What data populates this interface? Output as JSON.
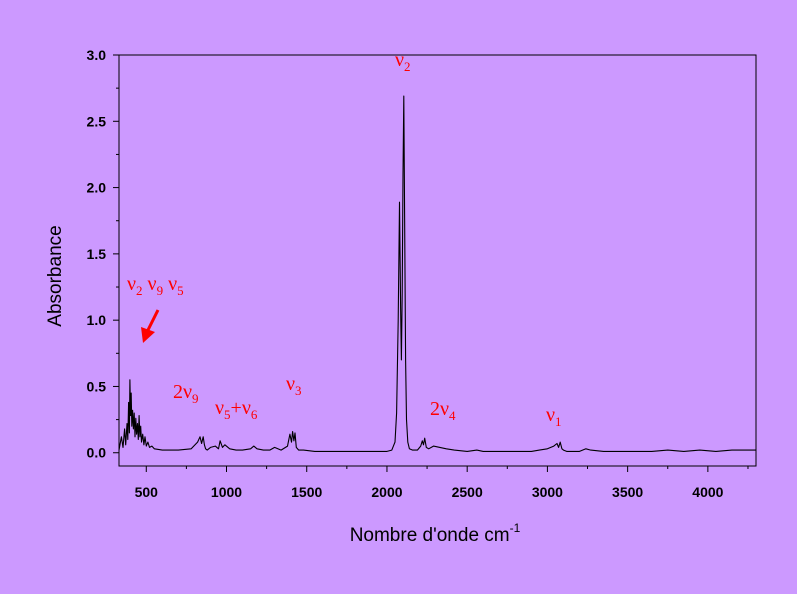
{
  "chart_data": {
    "type": "line",
    "xlabel": "Nombre d'onde cm",
    "xlabel_sup": "-1",
    "ylabel": "Absorbance",
    "xlim": [
      330,
      4300
    ],
    "ylim": [
      -0.1,
      3.0
    ],
    "x_ticks": [
      500,
      1000,
      1500,
      2000,
      2500,
      3000,
      3500,
      4000
    ],
    "y_ticks": [
      0.0,
      0.5,
      1.0,
      1.5,
      2.0,
      2.5,
      3.0
    ],
    "x_tick_labels": [
      "500",
      "1000",
      "1500",
      "2000",
      "2500",
      "3000",
      "3500",
      "4000"
    ],
    "y_tick_labels": [
      "0.0",
      "0.5",
      "1.0",
      "1.5",
      "2.0",
      "2.5",
      "3.0"
    ],
    "grid": false,
    "legend": "none",
    "line_color": "#000000",
    "annotation_color": "#ff0000",
    "series": [
      {
        "x": [
          330,
          345,
          355,
          365,
          372,
          380,
          385,
          390,
          395,
          398,
          402,
          406,
          410,
          415,
          420,
          425,
          430,
          435,
          440,
          445,
          450,
          455,
          460,
          465,
          470,
          478,
          485,
          492,
          500,
          510,
          520,
          535,
          550,
          600,
          700,
          780,
          820,
          835,
          845,
          855,
          862,
          870,
          880,
          900,
          930,
          950,
          960,
          975,
          990,
          1020,
          1060,
          1100,
          1150,
          1170,
          1190,
          1230,
          1270,
          1300,
          1340,
          1380,
          1395,
          1405,
          1412,
          1420,
          1427,
          1435,
          1450,
          1480,
          1550,
          1650,
          1750,
          1850,
          1950,
          2000,
          2030,
          2050,
          2060,
          2070,
          2078,
          2085,
          2090,
          2095,
          2100,
          2105,
          2110,
          2116,
          2122,
          2130,
          2140,
          2160,
          2190,
          2210,
          2220,
          2228,
          2235,
          2245,
          2260,
          2290,
          2330,
          2370,
          2420,
          2500,
          2560,
          2600,
          2700,
          2800,
          2900,
          2950,
          3000,
          3040,
          3060,
          3070,
          3080,
          3090,
          3100,
          3120,
          3200,
          3240,
          3270,
          3350,
          3500,
          3650,
          3750,
          3850,
          3950,
          4050,
          4150,
          4250,
          4300
        ],
        "y": [
          0.02,
          0.12,
          0.04,
          0.18,
          0.06,
          0.22,
          0.1,
          0.38,
          0.15,
          0.55,
          0.28,
          0.45,
          0.2,
          0.32,
          0.18,
          0.3,
          0.12,
          0.26,
          0.14,
          0.22,
          0.1,
          0.28,
          0.12,
          0.2,
          0.08,
          0.14,
          0.06,
          0.12,
          0.05,
          0.08,
          0.04,
          0.05,
          0.03,
          0.02,
          0.02,
          0.03,
          0.08,
          0.12,
          0.07,
          0.12,
          0.06,
          0.03,
          0.02,
          0.04,
          0.05,
          0.03,
          0.09,
          0.04,
          0.06,
          0.03,
          0.02,
          0.02,
          0.03,
          0.05,
          0.03,
          0.02,
          0.02,
          0.04,
          0.02,
          0.05,
          0.14,
          0.08,
          0.16,
          0.09,
          0.15,
          0.04,
          0.02,
          0.02,
          0.01,
          0.01,
          0.01,
          0.01,
          0.01,
          0.01,
          0.02,
          0.08,
          0.3,
          1.0,
          1.89,
          1.1,
          0.7,
          1.2,
          2.1,
          2.69,
          1.8,
          0.7,
          0.25,
          0.08,
          0.03,
          0.02,
          0.02,
          0.05,
          0.09,
          0.06,
          0.11,
          0.04,
          0.03,
          0.05,
          0.04,
          0.03,
          0.02,
          0.01,
          0.02,
          0.01,
          0.01,
          0.01,
          0.01,
          0.02,
          0.03,
          0.05,
          0.07,
          0.04,
          0.08,
          0.03,
          0.02,
          0.01,
          0.01,
          0.03,
          0.02,
          0.01,
          0.01,
          0.01,
          0.02,
          0.01,
          0.02,
          0.01,
          0.02,
          0.02,
          0.02
        ]
      }
    ],
    "annotations": [
      {
        "id": "nu2",
        "parts": [
          [
            "ν",
            false
          ],
          [
            "2",
            true
          ]
        ]
      },
      {
        "id": "nu2-nu9-nu5",
        "parts": [
          [
            "ν",
            false
          ],
          [
            "2",
            true
          ],
          [
            " ν",
            false
          ],
          [
            "9",
            true
          ],
          [
            " ν",
            false
          ],
          [
            "5",
            true
          ]
        ]
      },
      {
        "id": "2nu9",
        "parts": [
          [
            "2ν",
            false
          ],
          [
            "9",
            true
          ]
        ]
      },
      {
        "id": "nu5-plus-nu6",
        "parts": [
          [
            "ν",
            false
          ],
          [
            "5",
            true
          ],
          [
            "+ν",
            false
          ],
          [
            "6",
            true
          ]
        ]
      },
      {
        "id": "nu3",
        "parts": [
          [
            "ν",
            false
          ],
          [
            "3",
            true
          ]
        ]
      },
      {
        "id": "2nu4",
        "parts": [
          [
            "2ν",
            false
          ],
          [
            "4",
            true
          ]
        ]
      },
      {
        "id": "nu1",
        "parts": [
          [
            "ν",
            false
          ],
          [
            "1",
            true
          ]
        ]
      }
    ]
  }
}
